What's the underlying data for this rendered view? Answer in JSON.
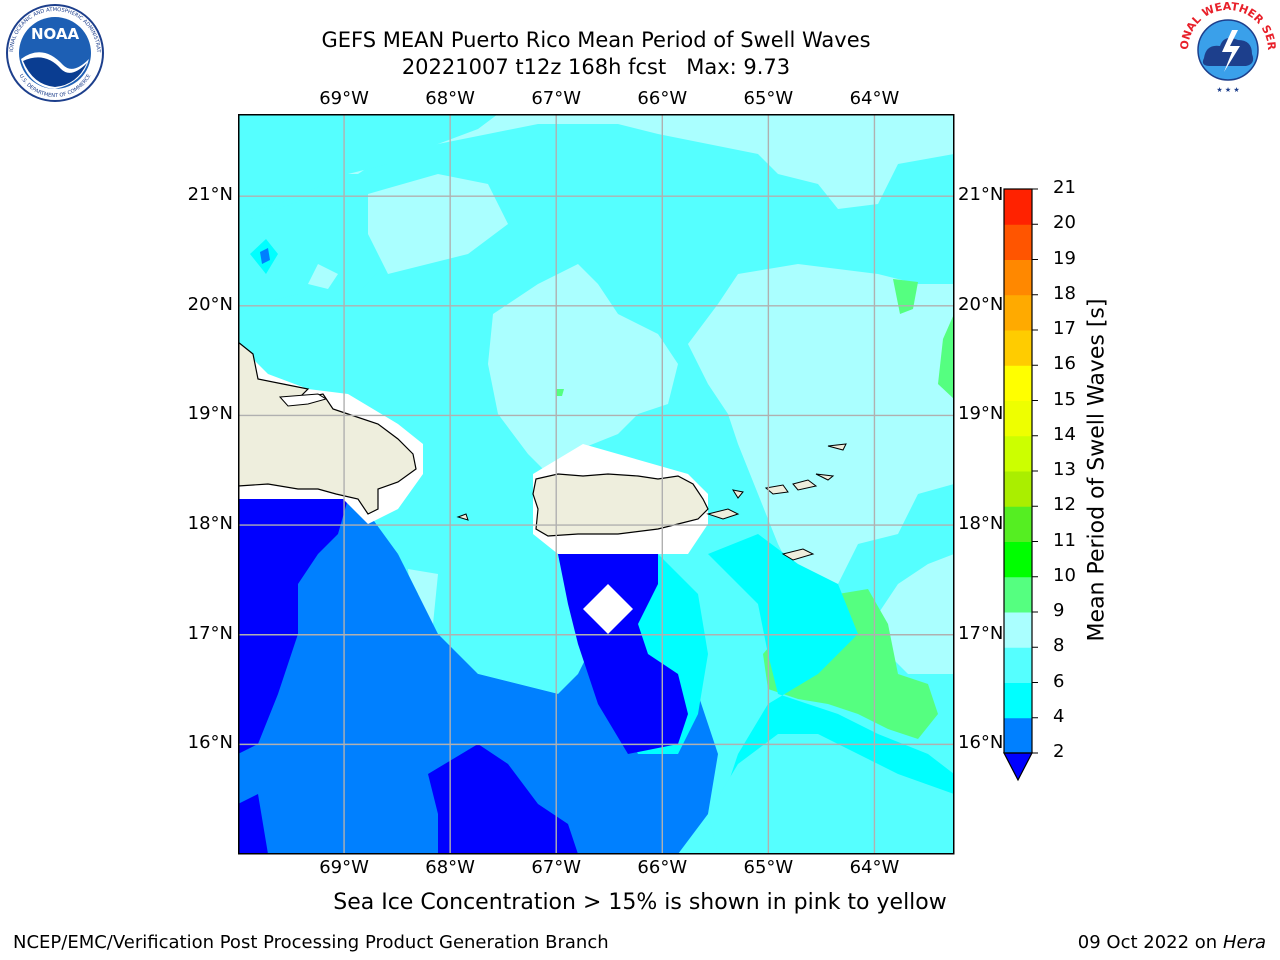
{
  "title": {
    "line1": "GEFS MEAN Puerto Rico Mean Period of Swell Waves",
    "line2": "20221007 t12z 168h fcst   Max: 9.73"
  },
  "logos": {
    "noaa_text": "NOAA",
    "noaa_ring_top": "NATIONAL OCEANIC AND ATMOSPHERIC ADMINISTRATION",
    "noaa_ring_bottom": "U.S. DEPARTMENT OF COMMERCE",
    "nws_ring": "NATIONAL WEATHER SERVICE"
  },
  "map": {
    "lon_labels": [
      "69°W",
      "68°W",
      "67°W",
      "66°W",
      "65°W",
      "64°W"
    ],
    "lat_labels": [
      "21°N",
      "20°N",
      "19°N",
      "18°N",
      "17°N",
      "16°N"
    ],
    "lon_values": [
      -69,
      -68,
      -67,
      -66,
      -65,
      -64
    ],
    "lat_values": [
      21,
      20,
      19,
      18,
      17,
      16
    ],
    "extent": {
      "lon_min": -70,
      "lon_max": -63.25,
      "lat_min": 15,
      "lat_max": 21.75
    },
    "ocean_color": "#55ffff",
    "land_color": "#eeeedd",
    "grid_color": "#b0b0b0"
  },
  "colorbar": {
    "label": "Mean Period of Swell Waves [s]",
    "ticks": [
      "2",
      "4",
      "6",
      "8",
      "9",
      "10",
      "11",
      "12",
      "13",
      "14",
      "15",
      "16",
      "17",
      "18",
      "19",
      "20",
      "21"
    ],
    "colors": [
      "#0000ff",
      "#0080ff",
      "#00ffff",
      "#55ffff",
      "#aaffff",
      "#55ff80",
      "#00ff00",
      "#55ee22",
      "#aaee00",
      "#ccff00",
      "#eeff00",
      "#ffff00",
      "#ffcc00",
      "#ffaa00",
      "#ff8800",
      "#ff5500",
      "#ff2200",
      "#ff0000"
    ]
  },
  "caption": "Sea Ice Concentration > 15% is shown in pink to yellow",
  "footer": {
    "left": "NCEP/EMC/Verification Post Processing Product Generation Branch",
    "date": "09 Oct 2022 on ",
    "machine": "Hera"
  }
}
